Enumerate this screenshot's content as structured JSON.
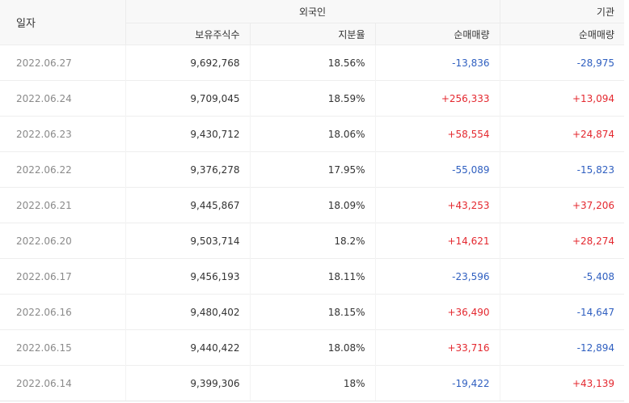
{
  "header": {
    "date_label": "일자",
    "foreign_group": "외국인",
    "institution_group": "기관",
    "col_holdings": "보유주식수",
    "col_ratio": "지분율",
    "col_foreign_net": "순매매량",
    "col_institution_net": "순매매량"
  },
  "colors": {
    "positive": "#e4282f",
    "negative": "#2f5fc0"
  },
  "rows": [
    {
      "date": "2022.06.27",
      "holdings": "9,692,768",
      "ratio": "18.56%",
      "foreign_net": "-13,836",
      "institution_net": "-28,975"
    },
    {
      "date": "2022.06.24",
      "holdings": "9,709,045",
      "ratio": "18.59%",
      "foreign_net": "+256,333",
      "institution_net": "+13,094"
    },
    {
      "date": "2022.06.23",
      "holdings": "9,430,712",
      "ratio": "18.06%",
      "foreign_net": "+58,554",
      "institution_net": "+24,874"
    },
    {
      "date": "2022.06.22",
      "holdings": "9,376,278",
      "ratio": "17.95%",
      "foreign_net": "-55,089",
      "institution_net": "-15,823"
    },
    {
      "date": "2022.06.21",
      "holdings": "9,445,867",
      "ratio": "18.09%",
      "foreign_net": "+43,253",
      "institution_net": "+37,206"
    },
    {
      "date": "2022.06.20",
      "holdings": "9,503,714",
      "ratio": "18.2%",
      "foreign_net": "+14,621",
      "institution_net": "+28,274"
    },
    {
      "date": "2022.06.17",
      "holdings": "9,456,193",
      "ratio": "18.11%",
      "foreign_net": "-23,596",
      "institution_net": "-5,408"
    },
    {
      "date": "2022.06.16",
      "holdings": "9,480,402",
      "ratio": "18.15%",
      "foreign_net": "+36,490",
      "institution_net": "-14,647"
    },
    {
      "date": "2022.06.15",
      "holdings": "9,440,422",
      "ratio": "18.08%",
      "foreign_net": "+33,716",
      "institution_net": "-12,894"
    },
    {
      "date": "2022.06.14",
      "holdings": "9,399,306",
      "ratio": "18%",
      "foreign_net": "-19,422",
      "institution_net": "+43,139"
    }
  ]
}
